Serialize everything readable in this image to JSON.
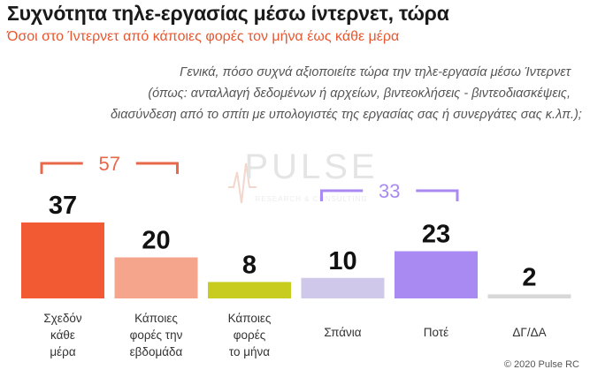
{
  "title": "Συχνότητα τηλε-εργασίας μέσω ίντερνετ, τώρα",
  "subtitle": "Όσοι στο Ίντερνετ από κάποιες φορές τον μήνα έως κάθε μέρα",
  "question": [
    "Γενικά, πόσο συχνά αξιοποιείτε τώρα την τηλε-εργασία μέσω Ίντερνετ",
    "(όπως: ανταλλαγή δεδομένων ή αρχείων, βιντεοκλήσεις - βιντεοδιασκέψεις,",
    "διασύνδεση από το σπίτι με υπολογιστές της εργασίας σας ή συνεργάτες σας κ.λπ.);"
  ],
  "watermark": {
    "text": "PULSE",
    "tagline": "RESEARCH & CONSULTING"
  },
  "copyright": "© 2020 Pulse RC",
  "colors": {
    "orange_dark": "#f15a32",
    "orange_light": "#f4a58c",
    "olive": "#c7cc1f",
    "lavender_light": "#cfc8ea",
    "purple": "#a88af2",
    "gray": "#d8d8d8",
    "bracket_orange": "#e8684a",
    "bracket_purple": "#a88af2"
  },
  "chart_data": {
    "type": "bar",
    "categories": [
      [
        "Σχεδόν",
        "κάθε",
        "μέρα"
      ],
      [
        "Κάποιες",
        "φορές την",
        "εβδομάδα"
      ],
      [
        "Κάποιες",
        "φορές",
        "το μήνα"
      ],
      [
        "Σπάνια"
      ],
      [
        "Ποτέ"
      ],
      [
        "ΔΓ/ΔΑ"
      ]
    ],
    "values": [
      37,
      20,
      8,
      10,
      23,
      2
    ],
    "bar_colors": [
      "#f15a32",
      "#f4a58c",
      "#c7cc1f",
      "#cfc8ea",
      "#a88af2",
      "#d8d8d8"
    ],
    "groups": [
      {
        "value": 57,
        "from": 0,
        "to": 1,
        "color": "#e8684a"
      },
      {
        "value": 33,
        "from": 3,
        "to": 4,
        "color": "#a88af2"
      }
    ],
    "ylim": [
      0,
      40
    ],
    "grid": false,
    "legend": "none"
  }
}
